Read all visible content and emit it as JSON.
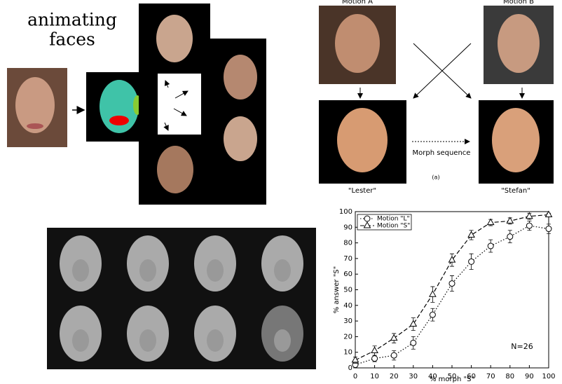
{
  "heading": {
    "line1": "animating",
    "line2": "faces"
  },
  "morph_figure": {
    "motion_a": "Motion A",
    "motion_b": "Motion B",
    "lester": "\"Lester\"",
    "stefan": "\"Stefan\"",
    "morph": "Morph sequence",
    "panel": "(a)"
  },
  "chart_data": {
    "type": "line",
    "x": [
      0,
      10,
      20,
      30,
      40,
      50,
      60,
      70,
      80,
      90,
      100
    ],
    "series": [
      {
        "name": "Motion \"L\"",
        "color": "#000000",
        "marker": "o",
        "linestyle": "dotted",
        "values": [
          2,
          6,
          8,
          16,
          34,
          54,
          68,
          78,
          84,
          91,
          89
        ],
        "errors": [
          2,
          2,
          3,
          4,
          4,
          5,
          5,
          4,
          4,
          3,
          3
        ]
      },
      {
        "name": "Motion \"S\"",
        "color": "#000000",
        "marker": "^",
        "linestyle": "dashed",
        "values": [
          5,
          11,
          19,
          28,
          47,
          69,
          85,
          93,
          94,
          97,
          98
        ],
        "errors": [
          2,
          3,
          3,
          4,
          5,
          4,
          3,
          2,
          2,
          2,
          1
        ]
      }
    ],
    "xlabel": "% morph \"S\"",
    "ylabel": "% answer \"S\"",
    "annotation": "N=26",
    "xlim": [
      0,
      100
    ],
    "ylim": [
      0,
      100
    ],
    "xticks": [
      0,
      10,
      20,
      30,
      40,
      50,
      60,
      70,
      80,
      90,
      100
    ],
    "yticks": [
      0,
      10,
      20,
      30,
      40,
      50,
      60,
      70,
      80,
      90,
      100
    ],
    "legend": "upper left"
  }
}
